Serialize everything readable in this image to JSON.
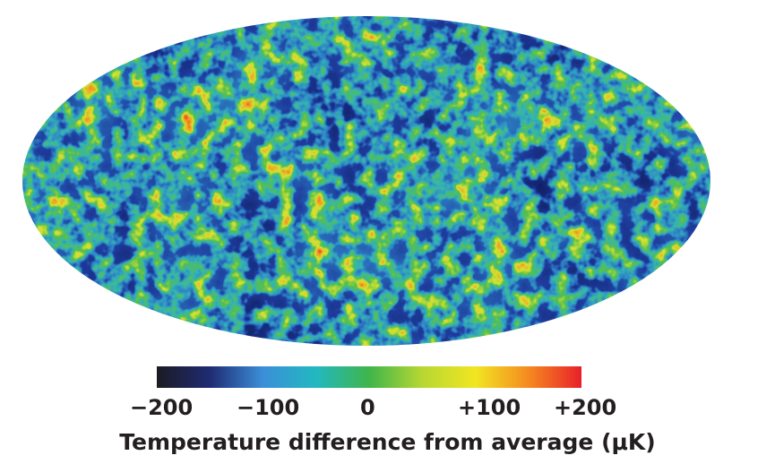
{
  "colorbar": {
    "min": -200,
    "max": 200,
    "stops": [
      "#1b1b22",
      "#1f2b73",
      "#3b8fd8",
      "#22b8c0",
      "#3fb54a",
      "#b7d733",
      "#f1e622",
      "#f58a20",
      "#e8202a"
    ],
    "tick_labels": [
      "−200",
      "−100",
      "0",
      "+100",
      "+200"
    ]
  },
  "caption": "Temperature difference from average (μK)",
  "map": {
    "projection": "Mollweide",
    "colors": {
      "deep": "#101c5e",
      "cold": "#1f3c9e",
      "cool": "#2f86c8",
      "base": "#35b6b0",
      "mild": "#56c04c",
      "warm": "#d8e233",
      "hot": "#f39a22",
      "peak": "#e2222a"
    }
  }
}
